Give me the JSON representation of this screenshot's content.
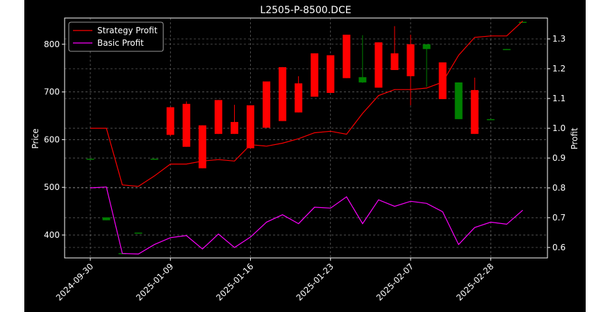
{
  "chart_data": {
    "type": "candlestick",
    "title": "L2505-P-8500.DCE",
    "xlabel": "",
    "ylabel": "Price",
    "y2label": "Profit",
    "ylim": [
      352,
      855
    ],
    "y2lim": [
      0.565,
      1.37
    ],
    "yticks": [
      400,
      500,
      600,
      700,
      800
    ],
    "y2ticks": [
      0.6,
      0.7,
      0.8,
      0.9,
      1.0,
      1.1,
      1.2,
      1.3
    ],
    "y2ticklabels": [
      "0.6",
      "0.7",
      "0.8",
      "0.9",
      "1.0",
      "1.1",
      "1.2",
      "1.3"
    ],
    "xticks": [
      {
        "i": 0,
        "label": "2024-09-30"
      },
      {
        "i": 5,
        "label": "2025-01-09"
      },
      {
        "i": 10,
        "label": "2025-01-16"
      },
      {
        "i": 15,
        "label": "2025-01-23"
      },
      {
        "i": 20,
        "label": "2025-02-07"
      },
      {
        "i": 25,
        "label": "2025-02-28"
      }
    ],
    "grid": true,
    "legend_position": "top-left",
    "colors": {
      "up": "#ff0000",
      "down": "#008000",
      "strategy": "#ff0000",
      "basic": "#ff00ff"
    },
    "candles": [
      {
        "open": 560,
        "high": 560,
        "low": 558,
        "close": 558
      },
      {
        "open": 437,
        "high": 437,
        "low": 431,
        "close": 431
      },
      {
        "open": 362,
        "high": 362,
        "low": 360,
        "close": 360
      },
      {
        "open": 405,
        "high": 405,
        "low": 403,
        "close": 403
      },
      {
        "open": 560,
        "high": 560,
        "low": 558,
        "close": 558
      },
      {
        "open": 610,
        "high": 668,
        "low": 608,
        "close": 668
      },
      {
        "open": 585,
        "high": 680,
        "low": 585,
        "close": 675
      },
      {
        "open": 540,
        "high": 630,
        "low": 540,
        "close": 630
      },
      {
        "open": 612,
        "high": 683,
        "low": 612,
        "close": 683
      },
      {
        "open": 612,
        "high": 673,
        "low": 612,
        "close": 637
      },
      {
        "open": 582,
        "high": 672,
        "low": 582,
        "close": 672
      },
      {
        "open": 625,
        "high": 722,
        "low": 625,
        "close": 722
      },
      {
        "open": 639,
        "high": 752,
        "low": 639,
        "close": 752
      },
      {
        "open": 657,
        "high": 733,
        "low": 657,
        "close": 718
      },
      {
        "open": 690,
        "high": 781,
        "low": 690,
        "close": 781
      },
      {
        "open": 698,
        "high": 777,
        "low": 698,
        "close": 777
      },
      {
        "open": 729,
        "high": 820,
        "low": 729,
        "close": 820
      },
      {
        "open": 731,
        "high": 819,
        "low": 719,
        "close": 720
      },
      {
        "open": 709,
        "high": 804,
        "low": 709,
        "close": 804
      },
      {
        "open": 746,
        "high": 838,
        "low": 746,
        "close": 781
      },
      {
        "open": 733,
        "high": 820,
        "low": 672,
        "close": 800
      },
      {
        "open": 800,
        "high": 800,
        "low": 711,
        "close": 790
      },
      {
        "open": 685,
        "high": 762,
        "low": 685,
        "close": 762
      },
      {
        "open": 720,
        "high": 720,
        "low": 643,
        "close": 643
      },
      {
        "open": 612,
        "high": 730,
        "low": 612,
        "close": 704
      },
      {
        "open": 643,
        "high": 643,
        "low": 641,
        "close": 641
      },
      {
        "open": 790,
        "high": 790,
        "low": 788,
        "close": 788
      },
      {
        "open": 847,
        "high": 847,
        "low": 845,
        "close": 845
      }
    ],
    "series": [
      {
        "name": "Strategy Profit",
        "values": [
          1.0,
          1.0,
          0.81,
          0.805,
          0.84,
          0.88,
          0.88,
          0.89,
          0.895,
          0.89,
          0.945,
          0.94,
          0.95,
          0.965,
          0.985,
          0.99,
          0.98,
          1.05,
          1.11,
          1.13,
          1.13,
          1.135,
          1.155,
          1.245,
          1.305,
          1.31,
          1.31,
          1.36
        ]
      },
      {
        "name": "Basic Profit",
        "values": [
          0.8,
          0.803,
          0.58,
          0.578,
          0.61,
          0.633,
          0.64,
          0.595,
          0.645,
          0.6,
          0.635,
          0.685,
          0.71,
          0.68,
          0.735,
          0.732,
          0.77,
          0.68,
          0.76,
          0.738,
          0.755,
          0.748,
          0.72,
          0.61,
          0.667,
          0.685,
          0.678,
          0.725
        ]
      }
    ]
  }
}
